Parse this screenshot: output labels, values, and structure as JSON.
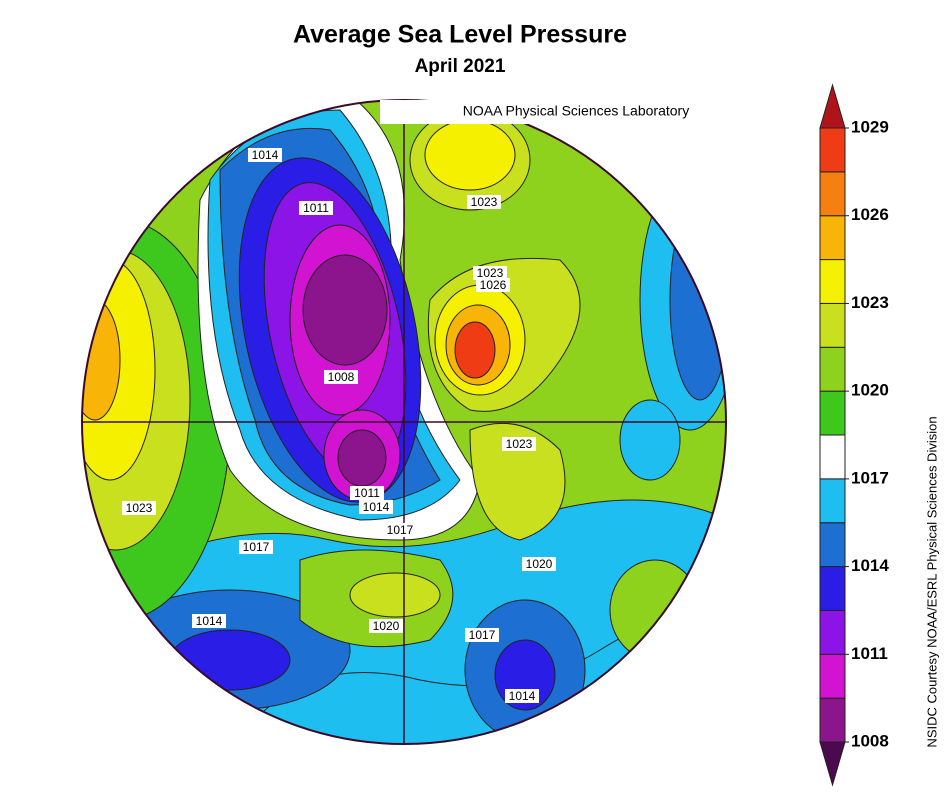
{
  "title": "Average Sea Level Pressure",
  "subtitle": "April 2021",
  "credit": "NOAA Physical Sciences Laboratory",
  "side_credit": "NSIDC Courtesy NOAA/ESRL Physical Sciences Division",
  "map": {
    "contour_labels": [
      1014,
      1011,
      1023,
      1023,
      1026,
      1008,
      1023,
      1011,
      1014,
      1017,
      1023,
      1017,
      1020,
      1014,
      1020,
      1017,
      1014
    ]
  },
  "colorbar": {
    "ylim": [
      1008,
      1029
    ],
    "yticks": [
      1008,
      1011,
      1014,
      1017,
      1020,
      1023,
      1026,
      1029
    ],
    "colors": [
      "#8c148c",
      "#d214d2",
      "#8c14e6",
      "#2a1ee6",
      "#1e6fd2",
      "#1ebef0",
      "#ffffff",
      "#3ec81e",
      "#8fd21e",
      "#c8e01e",
      "#f5f000",
      "#f9b408",
      "#f57f10",
      "#f03c14"
    ],
    "under_color": "#4b0a50",
    "over_color": "#b0141b"
  }
}
